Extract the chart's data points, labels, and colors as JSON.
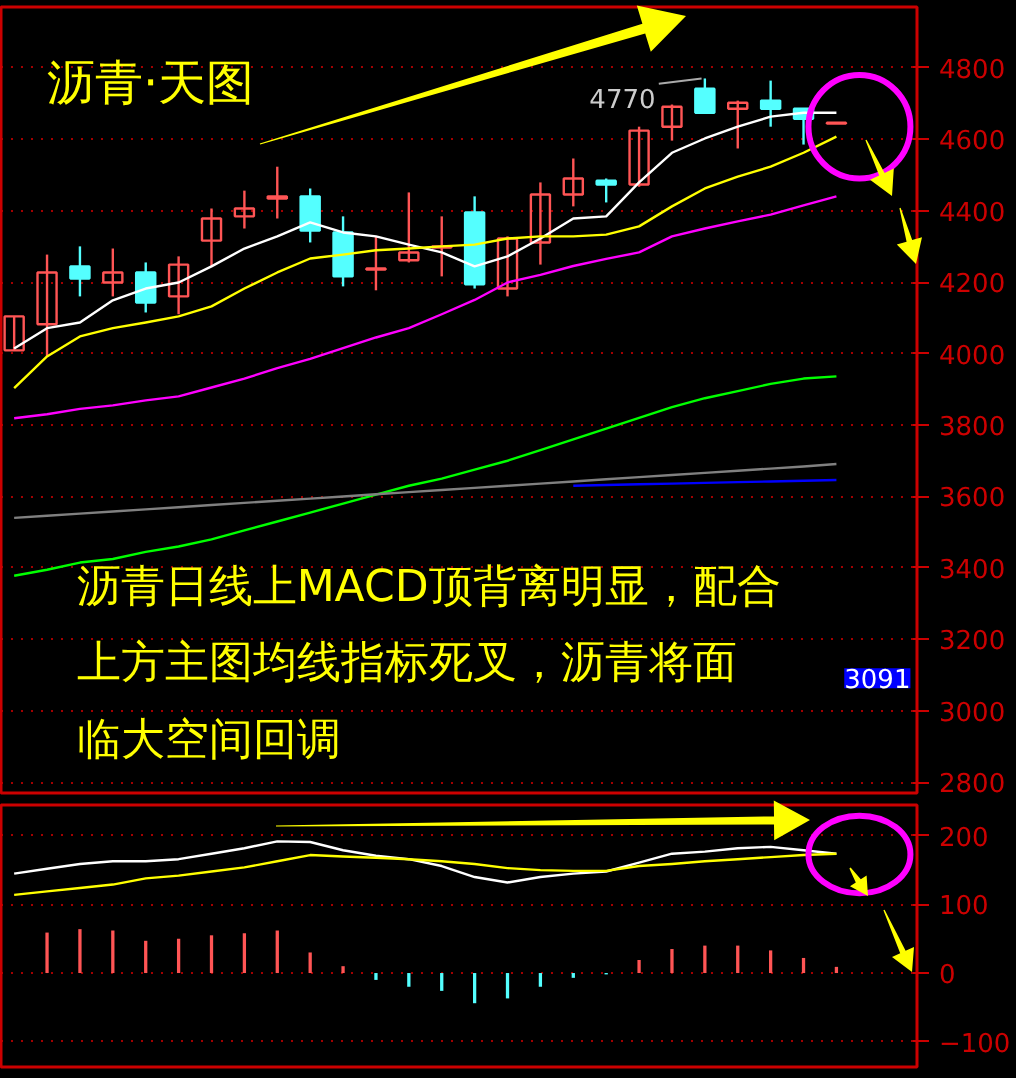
{
  "chart_data": [
    {
      "type": "candlestick",
      "title": "沥青·天图",
      "categories": [
        null,
        null,
        null,
        null,
        null,
        null,
        null,
        null,
        null,
        null,
        null,
        null,
        null,
        null,
        null,
        null,
        null,
        null,
        null,
        null,
        null,
        null,
        null,
        null,
        null,
        null
      ],
      "ohlc": [
        [
          4009,
          4104,
          4009,
          4104
        ],
        [
          4082,
          4277,
          3992,
          4227
        ],
        [
          4244,
          4300,
          4160,
          4210
        ],
        [
          4199,
          4294,
          4160,
          4227
        ],
        [
          4227,
          4255,
          4115,
          4143
        ],
        [
          4160,
          4272,
          4110,
          4249
        ],
        [
          4316,
          4406,
          4244,
          4378
        ],
        [
          4384,
          4456,
          4350,
          4406
        ],
        [
          4434,
          4523,
          4378,
          4440
        ],
        [
          4440,
          4462,
          4311,
          4344
        ],
        [
          4339,
          4384,
          4188,
          4216
        ],
        [
          4235,
          4328,
          4177,
          4238
        ],
        [
          4261,
          4451,
          4255,
          4283
        ],
        [
          4297,
          4384,
          4216,
          4300
        ],
        [
          4395,
          4440,
          4182,
          4194
        ],
        [
          4182,
          4328,
          4160,
          4322
        ],
        [
          4311,
          4479,
          4249,
          4445
        ],
        [
          4445,
          4546,
          4412,
          4490
        ],
        [
          4484,
          4490,
          4423,
          4473
        ],
        [
          4473,
          4635,
          4467,
          4624
        ],
        [
          4635,
          4697,
          4596,
          4691
        ],
        [
          4741,
          4770,
          4674,
          4674
        ],
        [
          4685,
          4708,
          4574,
          4702
        ],
        [
          4708,
          4764,
          4635,
          4685
        ],
        [
          4685,
          4685,
          4585,
          4657
        ],
        [
          4644,
          4646,
          4644,
          4646
        ]
      ],
      "colors": [
        "#ff5555",
        "#ff5555",
        "#54ffff",
        "#ff5555",
        "#54ffff",
        "#ff5555",
        "#ff5555",
        "#ff5555",
        "#ff5555",
        "#54ffff",
        "#54ffff",
        "#ff5555",
        "#ff5555",
        "#ff5555",
        "#54ffff",
        "#ff5555",
        "#ff5555",
        "#ff5555",
        "#54ffff",
        "#ff5555",
        "#ff5555",
        "#54ffff",
        "#ff5555",
        "#54ffff",
        "#54ffff",
        "#ff5555"
      ],
      "series": [
        {
          "type": "line",
          "color": "#ffffff",
          "values": [
            4014,
            4071,
            4087,
            4149,
            4182,
            4199,
            4244,
            4294,
            4328,
            4367,
            4339,
            4328,
            4305,
            4283,
            4244,
            4272,
            4322,
            4378,
            4384,
            4479,
            4562,
            4602,
            4635,
            4663,
            4674,
            4674
          ]
        },
        {
          "type": "line",
          "color": "#ffff00",
          "values": [
            3903,
            3992,
            4048,
            4071,
            4087,
            4104,
            4132,
            4182,
            4227,
            4266,
            4277,
            4289,
            4294,
            4300,
            4305,
            4322,
            4328,
            4328,
            4333,
            4356,
            4412,
            4462,
            4495,
            4523,
            4562,
            4607
          ]
        },
        {
          "type": "line",
          "color": "#ff00ff",
          "values": [
            3819,
            3830,
            3845,
            3855,
            3869,
            3880,
            3905,
            3930,
            3959,
            3985,
            4015,
            4045,
            4071,
            4110,
            4150,
            4199,
            4220,
            4245,
            4265,
            4283,
            4328,
            4350,
            4370,
            4389,
            4415,
            4440
          ]
        },
        {
          "type": "line",
          "color": "#00ff00",
          "values": [
            3378,
            3395,
            3415,
            3425,
            3445,
            3460,
            3480,
            3505,
            3530,
            3555,
            3580,
            3605,
            3630,
            3650,
            3675,
            3700,
            3730,
            3760,
            3790,
            3820,
            3850,
            3875,
            3895,
            3915,
            3930,
            3936
          ]
        },
        {
          "type": "line",
          "color": "#808080",
          "values": [
            3540,
            3546,
            3552,
            3558,
            3564,
            3570,
            3576,
            3582,
            3588,
            3594,
            3600,
            3606,
            3612,
            3618,
            3624,
            3630,
            3636,
            3642,
            3648,
            3654,
            3660,
            3666,
            3672,
            3678,
            3684,
            3691
          ]
        },
        {
          "type": "line",
          "color": "#0000ff",
          "values": [
            null,
            null,
            null,
            null,
            null,
            null,
            null,
            null,
            null,
            null,
            null,
            null,
            null,
            null,
            null,
            null,
            null,
            3630,
            3632,
            3634,
            3636,
            3638,
            3640,
            3642,
            3644,
            3646
          ]
        }
      ],
      "ylim": [
        2770,
        4970
      ],
      "yticks": [
        2800,
        3000,
        3200,
        3400,
        3600,
        3800,
        4000,
        4200,
        4400,
        4600,
        4800
      ],
      "grid": "y",
      "tick_labels": "y",
      "annotations": [
        "沥青日线上MACD顶背离明显，配合上方主图均线指标死叉，沥青将面临大空间回调",
        "4770",
        "3091"
      ]
    },
    {
      "type": "bar",
      "categories": [
        null,
        null,
        null,
        null,
        null,
        null,
        null,
        null,
        null,
        null,
        null,
        null,
        null,
        null,
        null,
        null,
        null,
        null,
        null,
        null,
        null,
        null,
        null,
        null,
        null,
        null
      ],
      "series": [
        {
          "type": "bar",
          "values": [
            null,
            59,
            64,
            62,
            47,
            50,
            55,
            58,
            62,
            30,
            10,
            -10,
            -20,
            -26,
            -44,
            -37,
            -20,
            -7,
            -2,
            19,
            35,
            40,
            40,
            33,
            22,
            9
          ],
          "colors": [
            "#ff5555",
            "#ff5555",
            "#ff5555",
            "#ff5555",
            "#ff5555",
            "#ff5555",
            "#ff5555",
            "#ff5555",
            "#ff5555",
            "#ff5555",
            "#ff5555",
            "#54ffff",
            "#54ffff",
            "#54ffff",
            "#54ffff",
            "#54ffff",
            "#54ffff",
            "#54ffff",
            "#54ffff",
            "#ff5555",
            "#ff5555",
            "#ff5555",
            "#ff5555",
            "#ff5555",
            "#ff5555",
            "#ff5555"
          ]
        },
        {
          "type": "line",
          "color": "#ffffff",
          "values": [
            145,
            152,
            159,
            163,
            163,
            166,
            174,
            182,
            192,
            191,
            179,
            171,
            166,
            156,
            140,
            132,
            140,
            145,
            148,
            161,
            174,
            177,
            182,
            184,
            179,
            174
          ]
        },
        {
          "type": "line",
          "color": "#ffff00",
          "values": [
            114,
            119,
            124,
            129,
            138,
            142,
            148,
            154,
            163,
            172,
            170,
            168,
            166,
            163,
            159,
            153,
            150,
            149,
            149,
            156,
            159,
            163,
            166,
            169,
            172,
            174
          ]
        }
      ],
      "ylim": [
        -137,
        245
      ],
      "yticks": [
        -100,
        0,
        100,
        200
      ],
      "grid": "y",
      "tick_labels": "y"
    }
  ]
}
